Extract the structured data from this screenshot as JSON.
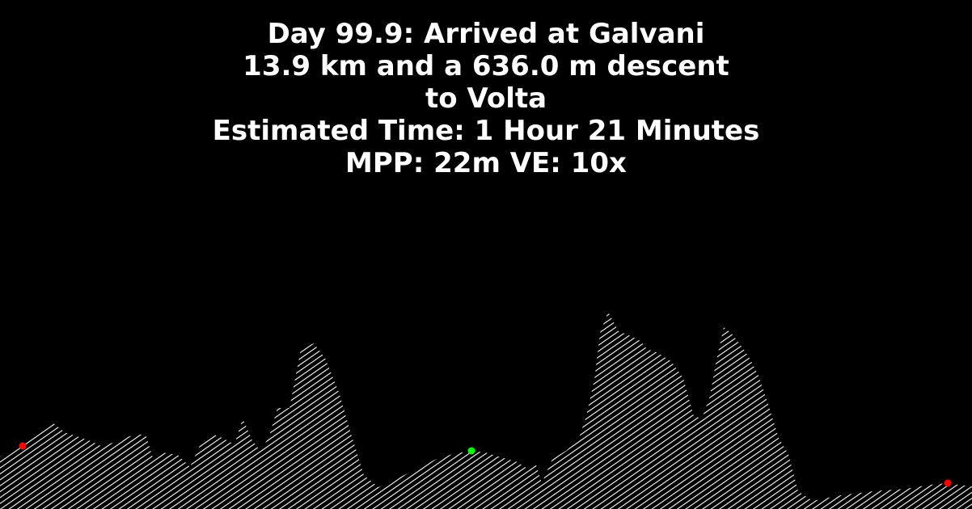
{
  "header": {
    "line1": "Day 99.9: Arrived at Galvani",
    "line2": "13.9 km and a 636.0 m descent",
    "line3": "to Volta",
    "line4": "Estimated Time: 1 Hour 21 Minutes",
    "line5": "MPP: 22m VE: 10x"
  },
  "colors": {
    "background": "#000000",
    "text": "#ffffff",
    "hatch": "#ffffff",
    "marker_red": "#ff0000",
    "marker_green": "#00ff00"
  },
  "chart_data": {
    "type": "area",
    "x_range": [
      0,
      1202
    ],
    "profile": [
      [
        0,
        565
      ],
      [
        20,
        555
      ],
      [
        40,
        540
      ],
      [
        65,
        523
      ],
      [
        80,
        535
      ],
      [
        95,
        540
      ],
      [
        110,
        545
      ],
      [
        125,
        552
      ],
      [
        140,
        548
      ],
      [
        160,
        540
      ],
      [
        180,
        537
      ],
      [
        190,
        570
      ],
      [
        200,
        560
      ],
      [
        220,
        563
      ],
      [
        235,
        578
      ],
      [
        250,
        545
      ],
      [
        262,
        537
      ],
      [
        275,
        542
      ],
      [
        290,
        550
      ],
      [
        300,
        518
      ],
      [
        312,
        545
      ],
      [
        322,
        558
      ],
      [
        333,
        540
      ],
      [
        343,
        505
      ],
      [
        358,
        505
      ],
      [
        372,
        432
      ],
      [
        388,
        425
      ],
      [
        402,
        443
      ],
      [
        420,
        488
      ],
      [
        432,
        530
      ],
      [
        450,
        588
      ],
      [
        468,
        603
      ],
      [
        500,
        588
      ],
      [
        540,
        568
      ],
      [
        560,
        562
      ],
      [
        583,
        558
      ],
      [
        600,
        560
      ],
      [
        640,
        572
      ],
      [
        652,
        580
      ],
      [
        662,
        572
      ],
      [
        670,
        598
      ],
      [
        683,
        568
      ],
      [
        700,
        558
      ],
      [
        715,
        545
      ],
      [
        725,
        515
      ],
      [
        735,
        470
      ],
      [
        742,
        412
      ],
      [
        752,
        386
      ],
      [
        765,
        410
      ],
      [
        778,
        415
      ],
      [
        792,
        422
      ],
      [
        800,
        432
      ],
      [
        812,
        436
      ],
      [
        830,
        447
      ],
      [
        845,
        468
      ],
      [
        858,
        515
      ],
      [
        868,
        518
      ],
      [
        878,
        490
      ],
      [
        885,
        450
      ],
      [
        895,
        405
      ],
      [
        905,
        413
      ],
      [
        918,
        430
      ],
      [
        928,
        445
      ],
      [
        938,
        465
      ],
      [
        950,
        500
      ],
      [
        963,
        542
      ],
      [
        975,
        562
      ],
      [
        987,
        608
      ],
      [
        1005,
        620
      ],
      [
        1040,
        613
      ],
      [
        1080,
        608
      ],
      [
        1120,
        605
      ],
      [
        1150,
        600
      ],
      [
        1172,
        598
      ],
      [
        1185,
        600
      ],
      [
        1202,
        602
      ]
    ],
    "markers": [
      {
        "x": 28,
        "y": 552,
        "color": "red"
      },
      {
        "x": 583,
        "y": 558,
        "color": "green"
      },
      {
        "x": 1172,
        "y": 598,
        "color": "red"
      }
    ]
  }
}
